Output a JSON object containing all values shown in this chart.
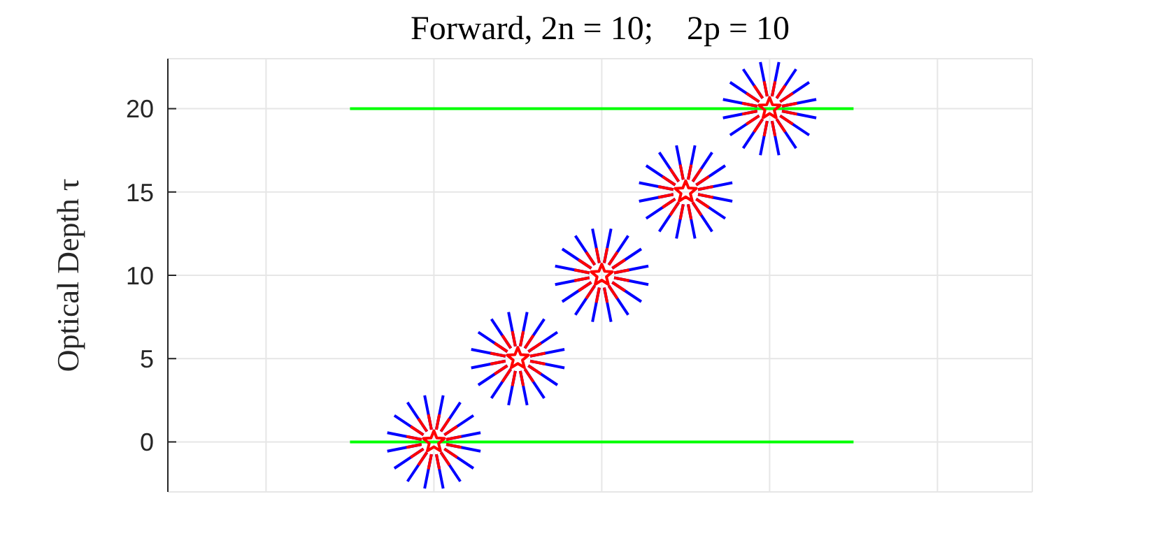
{
  "chart_data": {
    "type": "scatter",
    "title": "Forward, 2n = 10;    2p = 10",
    "ylabel": "Optical Depth τ",
    "categories": [
      null,
      null,
      null,
      null,
      null,
      null,
      null,
      null,
      null,
      null,
      null
    ],
    "series": [
      {
        "color": "#ff0000",
        "marker": "star",
        "values": [
          null,
          null,
          null,
          0,
          5,
          10,
          15,
          20,
          null,
          null,
          null
        ]
      },
      {
        "type": "line",
        "color": "#00ff00",
        "values": [
          null,
          null,
          0,
          0,
          0,
          0,
          0,
          0,
          0,
          null,
          null
        ]
      },
      {
        "type": "line",
        "color": "#00ff00",
        "values": [
          null,
          null,
          20,
          20,
          20,
          20,
          20,
          20,
          20,
          null,
          null
        ]
      }
    ],
    "ylim": [
      -3,
      23
    ],
    "yticks": [
      0,
      5,
      10,
      15,
      20
    ],
    "grid": true
  }
}
